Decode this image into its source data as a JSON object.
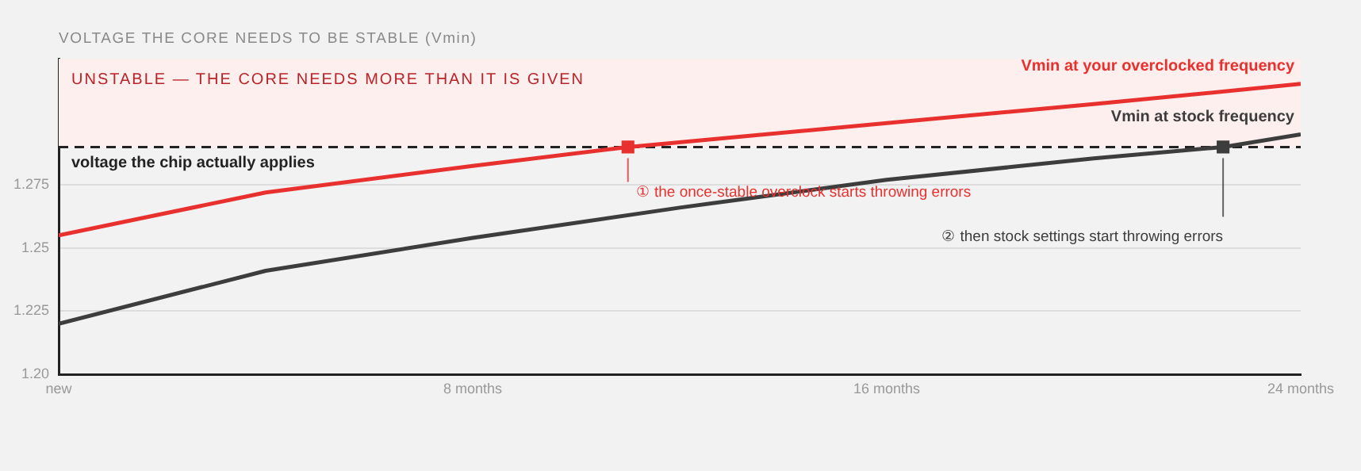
{
  "chart_data": {
    "type": "line",
    "title": "VOLTAGE THE CORE NEEDS TO BE STABLE (Vmin)",
    "xlim": [
      0,
      24
    ],
    "xticks": [
      {
        "value": 0,
        "label": "new"
      },
      {
        "value": 8,
        "label": "8 months"
      },
      {
        "value": 16,
        "label": "16 months"
      },
      {
        "value": 24,
        "label": "24 months"
      }
    ],
    "ylim": [
      1.2,
      1.325
    ],
    "yticks": [
      {
        "value": 1.2,
        "label": "1.20"
      },
      1.225,
      1.25,
      1.275
    ],
    "grid": "y",
    "legend": false,
    "marker": "none",
    "line_style": "solid",
    "series": [
      {
        "name": "Vmin at your overclocked frequency",
        "color": "#e8312f",
        "x": [
          0,
          4,
          8,
          11,
          16,
          20,
          24
        ],
        "values": [
          1.255,
          1.272,
          1.2825,
          1.29,
          1.2995,
          1.307,
          1.315
        ]
      },
      {
        "name": "Vmin at stock frequency",
        "color": "#3d3d3d",
        "x": [
          0,
          4,
          8,
          12,
          16,
          20,
          22.5,
          24
        ],
        "values": [
          1.22,
          1.241,
          1.254,
          1.266,
          1.277,
          1.2855,
          1.29,
          1.295
        ]
      },
      {
        "type": "scatter",
        "marker": "square",
        "color": "#e8312f",
        "x": [
          11
        ],
        "values": [
          1.29
        ]
      },
      {
        "type": "scatter",
        "marker": "square",
        "color": "#3d3d3d",
        "x": [
          22.5
        ],
        "values": [
          1.29
        ]
      }
    ],
    "bands": [
      {
        "axis": "y",
        "from": 1.29,
        "to": 1.325,
        "label": "UNSTABLE — THE CORE NEEDS MORE THAN IT IS GIVEN",
        "color": "#fcefed"
      }
    ],
    "ref_lines": [
      {
        "axis": "y",
        "value": 1.29,
        "label": "voltage the chip actually applies",
        "color": "#222222",
        "line_style": "dashed"
      }
    ],
    "annotations": [
      {
        "text": "① the once-stable overclock starts throwing errors",
        "x": 11,
        "y": 1.29
      },
      {
        "text": "② then stock settings start throwing errors",
        "x": 22.5,
        "y": 1.29
      }
    ]
  }
}
